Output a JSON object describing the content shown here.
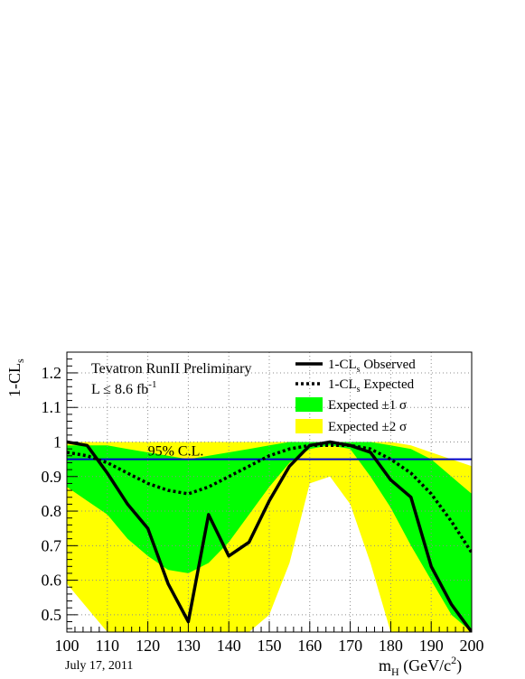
{
  "chart_data": {
    "type": "line",
    "title": "Tevatron RunII Preliminary",
    "subtitle": "L ≤ 8.6 fb",
    "subtitle_sup": "-1",
    "date": "July 17, 2011",
    "xlabel": {
      "main": "m",
      "sub": "H",
      "units": " (GeV/c",
      "sup": "2",
      "close": ")"
    },
    "ylabel": {
      "main": "1-CL",
      "sub": "s"
    },
    "xlim": [
      100,
      200
    ],
    "ylim": [
      0.45,
      1.26
    ],
    "xticks": [
      "100",
      "110",
      "120",
      "130",
      "140",
      "150",
      "160",
      "170",
      "180",
      "190",
      "200"
    ],
    "yticks": [
      "0.5",
      "0.6",
      "0.7",
      "0.8",
      "0.9",
      "1",
      "1.1",
      "1.2"
    ],
    "grid": true,
    "legend_position": "top-right",
    "reference_line": {
      "value": 0.95,
      "label": "95% C.L.",
      "color": "#0000cc"
    },
    "legend": [
      {
        "prefix": "1-CL",
        "sub": "s",
        "suffix": " Observed",
        "kind": "solid"
      },
      {
        "prefix": "1-CL",
        "sub": "s",
        "suffix": " Expected",
        "kind": "dotted"
      },
      {
        "prefix": "Expected ±1 ",
        "sub": "",
        "suffix": "σ",
        "kind": "green"
      },
      {
        "prefix": "Expected ±2 ",
        "sub": "",
        "suffix": "σ",
        "kind": "yellow"
      }
    ],
    "colors": {
      "one_sigma": "#00ff00",
      "two_sigma": "#ffff00",
      "observed": "#000000",
      "expected": "#000000"
    },
    "band_x": [
      100,
      105,
      110,
      115,
      120,
      125,
      130,
      135,
      140,
      145,
      150,
      155,
      160,
      165,
      170,
      175,
      180,
      185,
      190,
      195,
      200
    ],
    "two_sigma_upper": [
      1.0,
      1.0,
      1.0,
      1.0,
      1.0,
      1.0,
      1.0,
      1.0,
      1.0,
      1.0,
      1.0,
      1.0,
      1.0,
      1.0,
      1.0,
      1.0,
      1.0,
      0.99,
      0.97,
      0.95,
      0.93
    ],
    "two_sigma_lower": [
      0.59,
      0.52,
      0.45,
      0.45,
      0.45,
      0.45,
      0.45,
      0.45,
      0.45,
      0.45,
      0.5,
      0.65,
      0.88,
      0.9,
      0.82,
      0.65,
      0.45,
      0.45,
      0.45,
      0.45,
      0.45
    ],
    "one_sigma_upper": [
      0.99,
      0.99,
      0.99,
      0.98,
      0.97,
      0.96,
      0.95,
      0.96,
      0.97,
      0.98,
      0.99,
      1.0,
      1.0,
      1.0,
      1.0,
      1.0,
      0.99,
      0.98,
      0.95,
      0.9,
      0.85
    ],
    "one_sigma_lower": [
      0.87,
      0.83,
      0.79,
      0.72,
      0.67,
      0.63,
      0.62,
      0.65,
      0.71,
      0.79,
      0.87,
      0.94,
      0.98,
      0.99,
      0.98,
      0.9,
      0.81,
      0.7,
      0.6,
      0.5,
      0.45
    ],
    "series": [
      {
        "name": "1-CL_s Observed",
        "x": [
          100,
          105,
          110,
          115,
          120,
          125,
          130,
          135,
          140,
          145,
          150,
          155,
          160,
          165,
          170,
          175,
          180,
          185,
          190,
          195,
          200
        ],
        "values": [
          1.0,
          0.99,
          0.91,
          0.82,
          0.75,
          0.59,
          0.48,
          0.79,
          0.67,
          0.71,
          0.83,
          0.93,
          0.99,
          1.0,
          0.99,
          0.97,
          0.89,
          0.84,
          0.64,
          0.53,
          0.45
        ]
      },
      {
        "name": "1-CL_s Expected",
        "x": [
          100,
          105,
          110,
          115,
          120,
          125,
          130,
          135,
          140,
          145,
          150,
          155,
          160,
          165,
          170,
          175,
          180,
          185,
          190,
          195,
          200
        ],
        "values": [
          0.97,
          0.96,
          0.94,
          0.91,
          0.88,
          0.86,
          0.85,
          0.87,
          0.9,
          0.93,
          0.96,
          0.98,
          0.99,
          0.99,
          0.99,
          0.98,
          0.95,
          0.91,
          0.85,
          0.77,
          0.68
        ]
      }
    ]
  }
}
